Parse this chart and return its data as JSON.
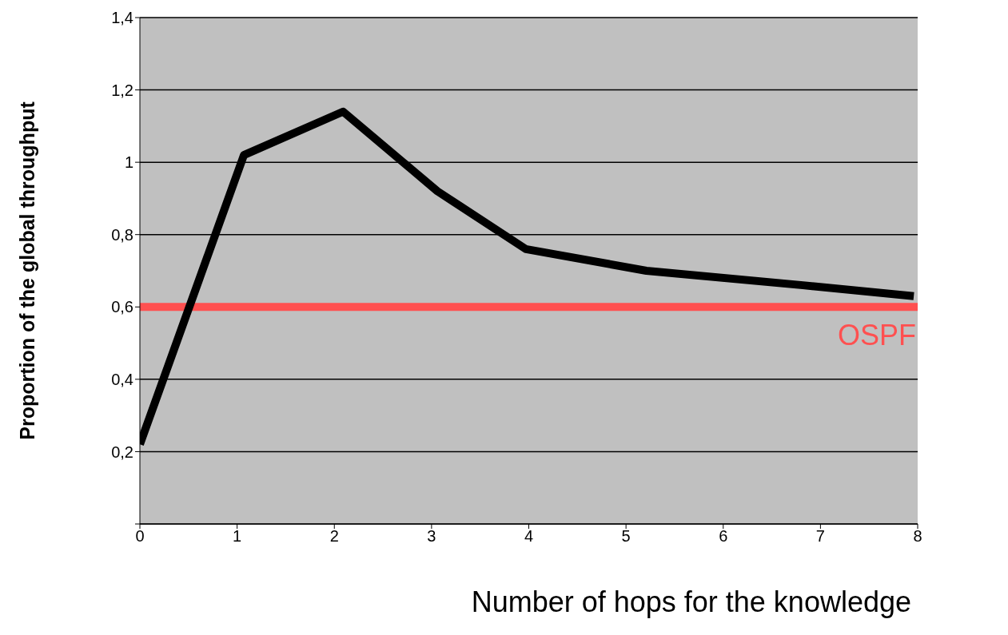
{
  "chart_data": {
    "type": "line",
    "xlabel": "Number of hops for the knowledge",
    "ylabel": "Proportion of the global throughput",
    "x": [
      0,
      1.07,
      2.09,
      3.06,
      3.97,
      5.21,
      6.82,
      7.96
    ],
    "series": [
      {
        "color": "#000000",
        "values": [
          0.22,
          1.02,
          1.14,
          0.92,
          0.76,
          0.7,
          0.66,
          0.63
        ]
      }
    ],
    "xlim": [
      0,
      8
    ],
    "xticks": [
      0,
      1,
      2,
      3,
      4,
      5,
      6,
      7,
      8
    ],
    "ylim": [
      0,
      1.4
    ],
    "yticks": [
      {
        "value": 0,
        "label": null
      },
      {
        "value": 0.2,
        "label": "0,2"
      },
      {
        "value": 0.4,
        "label": "0,4"
      },
      {
        "value": 0.6,
        "label": "0,6"
      },
      {
        "value": 0.8,
        "label": "0,8"
      },
      {
        "value": 1,
        "label": "1"
      },
      {
        "value": 1.2,
        "label": "1,2"
      },
      {
        "value": 1.4,
        "label": "1,4"
      }
    ],
    "ref_lines": [
      {
        "axis": "y",
        "value": 0.6,
        "label": "OSPF",
        "color": "#ff5050"
      }
    ],
    "grid": "y",
    "marker": "none",
    "line_style": "solid"
  }
}
